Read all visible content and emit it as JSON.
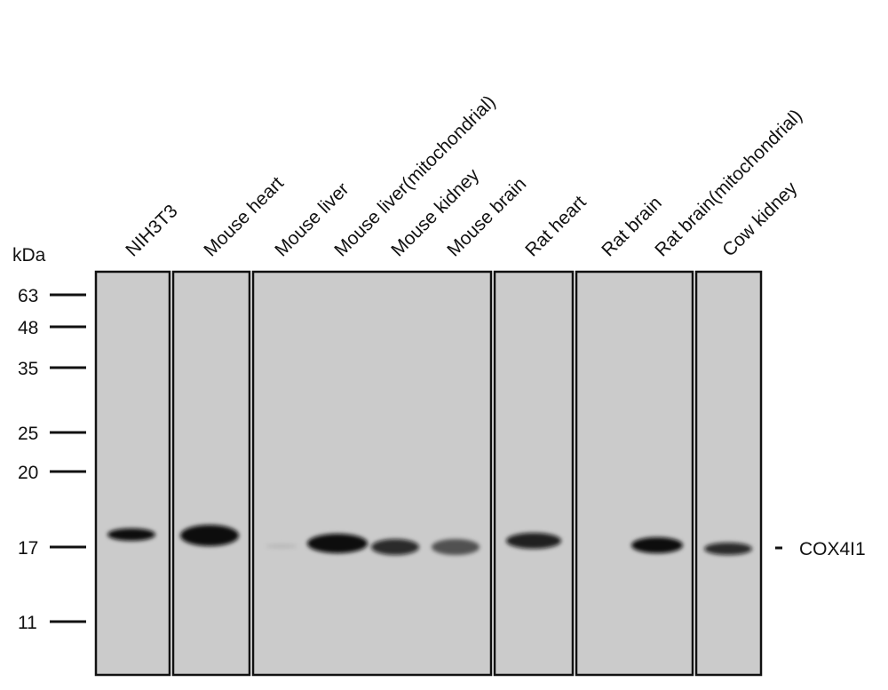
{
  "lanes": [
    "NIH3T3",
    "Mouse heart",
    "Mouse liver",
    "Mouse liver(mitochondrial)",
    "Mouse kidney",
    "Mouse brain",
    "Rat heart",
    "Rat brain",
    "Rat brain(mitochondrial)",
    "Cow kidney"
  ],
  "marker_unit": "kDa",
  "markers": [
    "63",
    "48",
    "35",
    "25",
    "20",
    "17",
    "11"
  ],
  "band_label": "COX4I1"
}
